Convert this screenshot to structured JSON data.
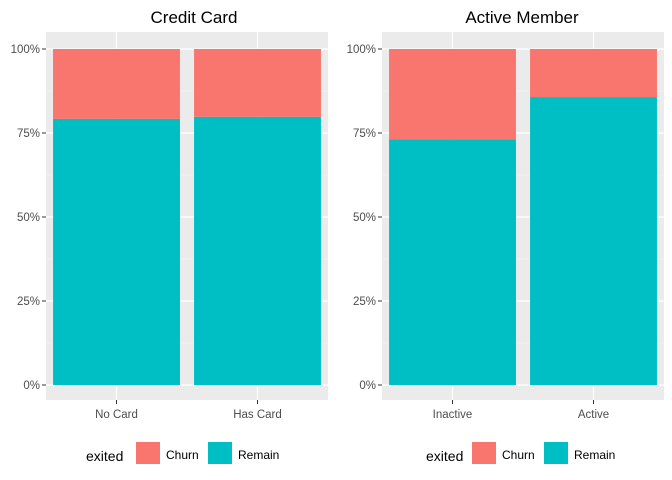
{
  "colors": {
    "churn": "#F8766D",
    "remain": "#00BFC4",
    "panel_bg": "#EBEBEB",
    "grid_major": "#FFFFFF",
    "grid_minor": "#F5F5F5"
  },
  "chart_data": [
    {
      "type": "bar",
      "stacked": "percent",
      "title": "Credit Card",
      "categories": [
        "No Card",
        "Has Card"
      ],
      "series": [
        {
          "name": "Churn",
          "values": [
            0.208,
            0.202
          ]
        },
        {
          "name": "Remain",
          "values": [
            0.792,
            0.798
          ]
        }
      ],
      "ylim": [
        0,
        1
      ],
      "yticks": [
        "0%",
        "25%",
        "50%",
        "75%",
        "100%"
      ],
      "legend": {
        "title": "exited",
        "position": "bottom"
      }
    },
    {
      "type": "bar",
      "stacked": "percent",
      "title": "Active Member",
      "categories": [
        "Inactive",
        "Active"
      ],
      "series": [
        {
          "name": "Churn",
          "values": [
            0.269,
            0.143
          ]
        },
        {
          "name": "Remain",
          "values": [
            0.731,
            0.857
          ]
        }
      ],
      "ylim": [
        0,
        1
      ],
      "yticks": [
        "0%",
        "25%",
        "50%",
        "75%",
        "100%"
      ],
      "legend": {
        "title": "exited",
        "position": "bottom"
      }
    }
  ]
}
